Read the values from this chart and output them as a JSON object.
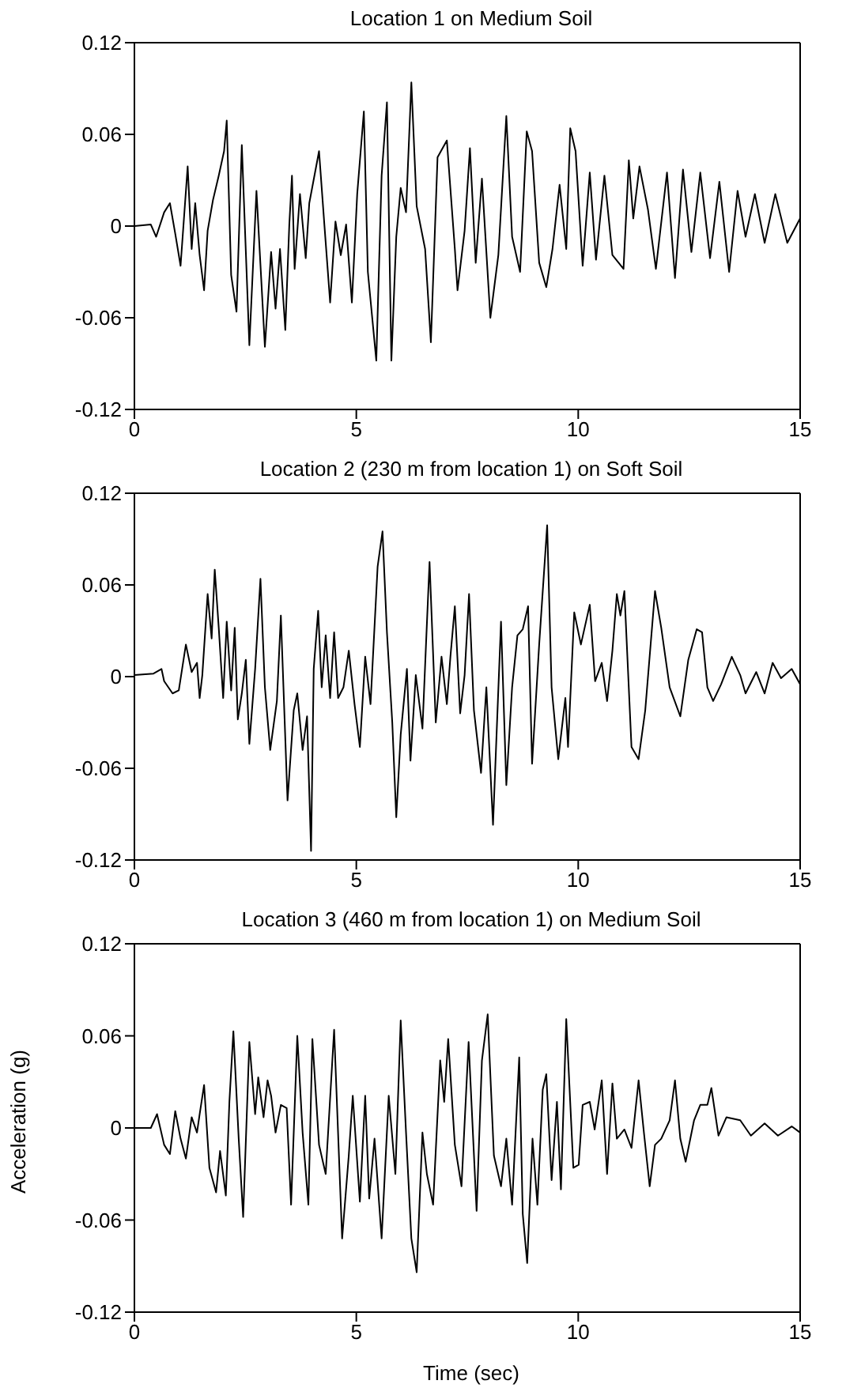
{
  "chart_data": [
    {
      "type": "line",
      "title": "Location 1 on Medium Soil",
      "xlim": [
        0,
        15
      ],
      "xticks": [
        0,
        5,
        10,
        15
      ],
      "ylim": [
        -0.12,
        0.12
      ],
      "yticks": [
        -0.12,
        -0.06,
        0,
        0.06,
        0.12
      ],
      "grid": false,
      "legend": false,
      "marker": "none",
      "line_style": "solid",
      "series": [
        {
          "color": "#000000",
          "x": [
            0,
            0.37,
            0.49,
            0.67,
            0.8,
            0.92,
            1.04,
            1.2,
            1.29,
            1.37,
            1.47,
            1.57,
            1.65,
            1.77,
            1.9,
            2.02,
            2.08,
            2.18,
            2.3,
            2.42,
            2.59,
            2.75,
            2.94,
            3.08,
            3.18,
            3.28,
            3.4,
            3.49,
            3.55,
            3.61,
            3.73,
            3.86,
            3.94,
            4.16,
            4.28,
            4.41,
            4.53,
            4.65,
            4.77,
            4.9,
            5.02,
            5.17,
            5.26,
            5.45,
            5.57,
            5.69,
            5.79,
            5.9,
            6,
            6.12,
            6.24,
            6.36,
            6.55,
            6.68,
            6.83,
            7.04,
            7.22,
            7.28,
            7.44,
            7.56,
            7.69,
            7.83,
            8.02,
            8.2,
            8.38,
            8.51,
            8.69,
            8.84,
            8.96,
            9.12,
            9.28,
            9.42,
            9.58,
            9.73,
            9.82,
            9.94,
            10.1,
            10.26,
            10.4,
            10.59,
            10.77,
            11.02,
            11.14,
            11.24,
            11.38,
            11.57,
            11.75,
            12,
            12.18,
            12.36,
            12.55,
            12.75,
            12.97,
            13.18,
            13.4,
            13.59,
            13.77,
            13.98,
            14.2,
            14.44,
            14.71,
            15
          ],
          "values": [
            0,
            0.001,
            -0.007,
            0.009,
            0.015,
            -0.005,
            -0.026,
            0.039,
            -0.015,
            0.015,
            -0.019,
            -0.042,
            -0.003,
            0.017,
            0.033,
            0.049,
            0.069,
            -0.032,
            -0.056,
            0.053,
            -0.078,
            0.023,
            -0.079,
            -0.017,
            -0.054,
            -0.015,
            -0.068,
            0.001,
            0.033,
            -0.028,
            0.021,
            -0.021,
            0.015,
            0.049,
            0.001,
            -0.05,
            0.003,
            -0.019,
            0.001,
            -0.05,
            0.021,
            0.075,
            -0.03,
            -0.088,
            0.033,
            0.081,
            -0.088,
            -0.007,
            0.025,
            0.009,
            0.094,
            0.013,
            -0.015,
            -0.076,
            0.045,
            0.056,
            -0.015,
            -0.042,
            -0.003,
            0.051,
            -0.024,
            0.031,
            -0.06,
            -0.019,
            0.072,
            -0.007,
            -0.03,
            0.062,
            0.049,
            -0.024,
            -0.04,
            -0.015,
            0.027,
            -0.015,
            0.064,
            0.049,
            -0.026,
            0.035,
            -0.022,
            0.033,
            -0.019,
            -0.028,
            0.043,
            0.005,
            0.039,
            0.011,
            -0.028,
            0.035,
            -0.034,
            0.037,
            -0.017,
            0.035,
            -0.021,
            0.029,
            -0.03,
            0.023,
            -0.007,
            0.021,
            -0.011,
            0.021,
            -0.011,
            0.005
          ]
        }
      ]
    },
    {
      "type": "line",
      "title": "Location 2 (230 m from location 1) on Soft Soil",
      "xlim": [
        0,
        15
      ],
      "xticks": [
        0,
        5,
        10,
        15
      ],
      "ylim": [
        -0.12,
        0.12
      ],
      "yticks": [
        -0.12,
        -0.06,
        0,
        0.06,
        0.12
      ],
      "grid": false,
      "legend": false,
      "marker": "none",
      "line_style": "solid",
      "series": [
        {
          "color": "#000000",
          "x": [
            0,
            0.43,
            0.61,
            0.67,
            0.86,
            1,
            1.16,
            1.29,
            1.41,
            1.47,
            1.53,
            1.65,
            1.74,
            1.81,
            1.9,
            2,
            2.08,
            2.18,
            2.26,
            2.33,
            2.42,
            2.51,
            2.59,
            2.72,
            2.84,
            2.94,
            3.06,
            3.21,
            3.3,
            3.45,
            3.59,
            3.67,
            3.79,
            3.89,
            3.98,
            4.04,
            4.14,
            4.22,
            4.31,
            4.41,
            4.5,
            4.59,
            4.71,
            4.83,
            4.96,
            5.08,
            5.2,
            5.32,
            5.48,
            5.59,
            5.69,
            5.81,
            5.9,
            6,
            6.14,
            6.22,
            6.34,
            6.49,
            6.57,
            6.65,
            6.79,
            6.92,
            7.04,
            7.12,
            7.22,
            7.34,
            7.44,
            7.54,
            7.65,
            7.81,
            7.93,
            8.08,
            8.26,
            8.38,
            8.51,
            8.63,
            8.75,
            8.87,
            8.96,
            9.12,
            9.3,
            9.4,
            9.55,
            9.71,
            9.77,
            9.91,
            10.06,
            10.26,
            10.38,
            10.53,
            10.65,
            10.77,
            10.87,
            10.95,
            11.04,
            11.2,
            11.36,
            11.51,
            11.73,
            11.87,
            12.06,
            12.3,
            12.48,
            12.67,
            12.79,
            12.91,
            13.04,
            13.22,
            13.46,
            13.65,
            13.77,
            14.01,
            14.2,
            14.38,
            14.57,
            14.81,
            15
          ],
          "values": [
            0.001,
            0.002,
            0.005,
            -0.003,
            -0.011,
            -0.009,
            0.021,
            0.003,
            0.009,
            -0.014,
            0.001,
            0.054,
            0.025,
            0.07,
            0.032,
            -0.014,
            0.036,
            -0.009,
            0.032,
            -0.028,
            -0.011,
            0.011,
            -0.044,
            0.005,
            0.064,
            -0.007,
            -0.048,
            -0.016,
            0.04,
            -0.081,
            -0.022,
            -0.011,
            -0.048,
            -0.026,
            -0.114,
            0.005,
            0.043,
            -0.007,
            0.027,
            -0.014,
            0.029,
            -0.014,
            -0.007,
            0.017,
            -0.018,
            -0.046,
            0.013,
            -0.018,
            0.072,
            0.095,
            0.029,
            -0.03,
            -0.092,
            -0.038,
            0.005,
            -0.055,
            0.001,
            -0.034,
            0.021,
            0.075,
            -0.03,
            0.013,
            -0.018,
            0.013,
            0.046,
            -0.024,
            0.001,
            0.054,
            -0.022,
            -0.063,
            -0.007,
            -0.097,
            0.036,
            -0.071,
            -0.007,
            0.027,
            0.031,
            0.046,
            -0.057,
            0.021,
            0.099,
            -0.007,
            -0.054,
            -0.014,
            -0.046,
            0.042,
            0.021,
            0.047,
            -0.003,
            0.009,
            -0.016,
            0.017,
            0.054,
            0.04,
            0.056,
            -0.046,
            -0.054,
            -0.022,
            0.056,
            0.032,
            -0.007,
            -0.026,
            0.011,
            0.031,
            0.029,
            -0.007,
            -0.016,
            -0.005,
            0.013,
            0.001,
            -0.011,
            0.003,
            -0.011,
            0.009,
            -0.001,
            0.005,
            -0.005
          ]
        }
      ]
    },
    {
      "type": "line",
      "title": "Location 3 (460 m from location 1) on Medium Soil",
      "xlabel": "Time (sec)",
      "ylabel": "Acceleration (g)",
      "xlim": [
        0,
        15
      ],
      "xticks": [
        0,
        5,
        10,
        15
      ],
      "ylim": [
        -0.12,
        0.12
      ],
      "yticks": [
        -0.12,
        -0.06,
        0,
        0.06,
        0.12
      ],
      "grid": false,
      "legend": false,
      "marker": "none",
      "line_style": "solid",
      "series": [
        {
          "color": "#000000",
          "x": [
            0,
            0.37,
            0.51,
            0.67,
            0.8,
            0.92,
            1.04,
            1.16,
            1.29,
            1.41,
            1.47,
            1.57,
            1.69,
            1.84,
            1.93,
            2.06,
            2.14,
            2.23,
            2.35,
            2.45,
            2.59,
            2.72,
            2.79,
            2.91,
            3,
            3.08,
            3.18,
            3.3,
            3.43,
            3.53,
            3.67,
            3.79,
            3.92,
            4.01,
            4.16,
            4.31,
            4.5,
            4.68,
            4.83,
            4.92,
            5.08,
            5.2,
            5.29,
            5.41,
            5.57,
            5.73,
            5.88,
            6,
            6.12,
            6.24,
            6.36,
            6.49,
            6.59,
            6.73,
            6.89,
            6.98,
            7.07,
            7.22,
            7.37,
            7.53,
            7.71,
            7.83,
            7.96,
            8.1,
            8.26,
            8.38,
            8.51,
            8.67,
            8.75,
            8.85,
            8.97,
            9.08,
            9.2,
            9.28,
            9.4,
            9.52,
            9.61,
            9.73,
            9.89,
            10.01,
            10.1,
            10.26,
            10.37,
            10.53,
            10.65,
            10.77,
            10.87,
            11.04,
            11.2,
            11.36,
            11.48,
            11.61,
            11.73,
            11.87,
            12.06,
            12.18,
            12.3,
            12.42,
            12.61,
            12.75,
            12.91,
            13,
            13.16,
            13.34,
            13.65,
            13.89,
            14.2,
            14.5,
            14.81,
            15
          ],
          "values": [
            0,
            0,
            0.009,
            -0.011,
            -0.017,
            0.011,
            -0.007,
            -0.02,
            0.007,
            -0.003,
            0.009,
            0.028,
            -0.026,
            -0.042,
            -0.015,
            -0.044,
            0.017,
            0.063,
            -0.007,
            -0.058,
            0.056,
            0.009,
            0.033,
            0.007,
            0.031,
            0.021,
            -0.003,
            0.015,
            0.013,
            -0.05,
            0.06,
            -0.003,
            -0.05,
            0.058,
            -0.011,
            -0.03,
            0.064,
            -0.072,
            -0.018,
            0.021,
            -0.048,
            0.021,
            -0.046,
            -0.007,
            -0.072,
            0.021,
            -0.03,
            0.07,
            -0.003,
            -0.072,
            -0.094,
            -0.003,
            -0.03,
            -0.05,
            0.044,
            0.017,
            0.058,
            -0.011,
            -0.038,
            0.056,
            -0.054,
            0.044,
            0.074,
            -0.018,
            -0.038,
            -0.007,
            -0.05,
            0.046,
            -0.056,
            -0.088,
            -0.007,
            -0.05,
            0.025,
            0.035,
            -0.034,
            0.017,
            -0.04,
            0.071,
            -0.026,
            -0.024,
            0.015,
            0.017,
            -0.001,
            0.031,
            -0.03,
            0.029,
            -0.007,
            -0.001,
            -0.013,
            0.031,
            -0.003,
            -0.038,
            -0.011,
            -0.007,
            0.005,
            0.031,
            -0.007,
            -0.022,
            0.005,
            0.015,
            0.015,
            0.026,
            -0.005,
            0.007,
            0.005,
            -0.005,
            0.003,
            -0.005,
            0.001,
            -0.003
          ]
        }
      ]
    }
  ]
}
